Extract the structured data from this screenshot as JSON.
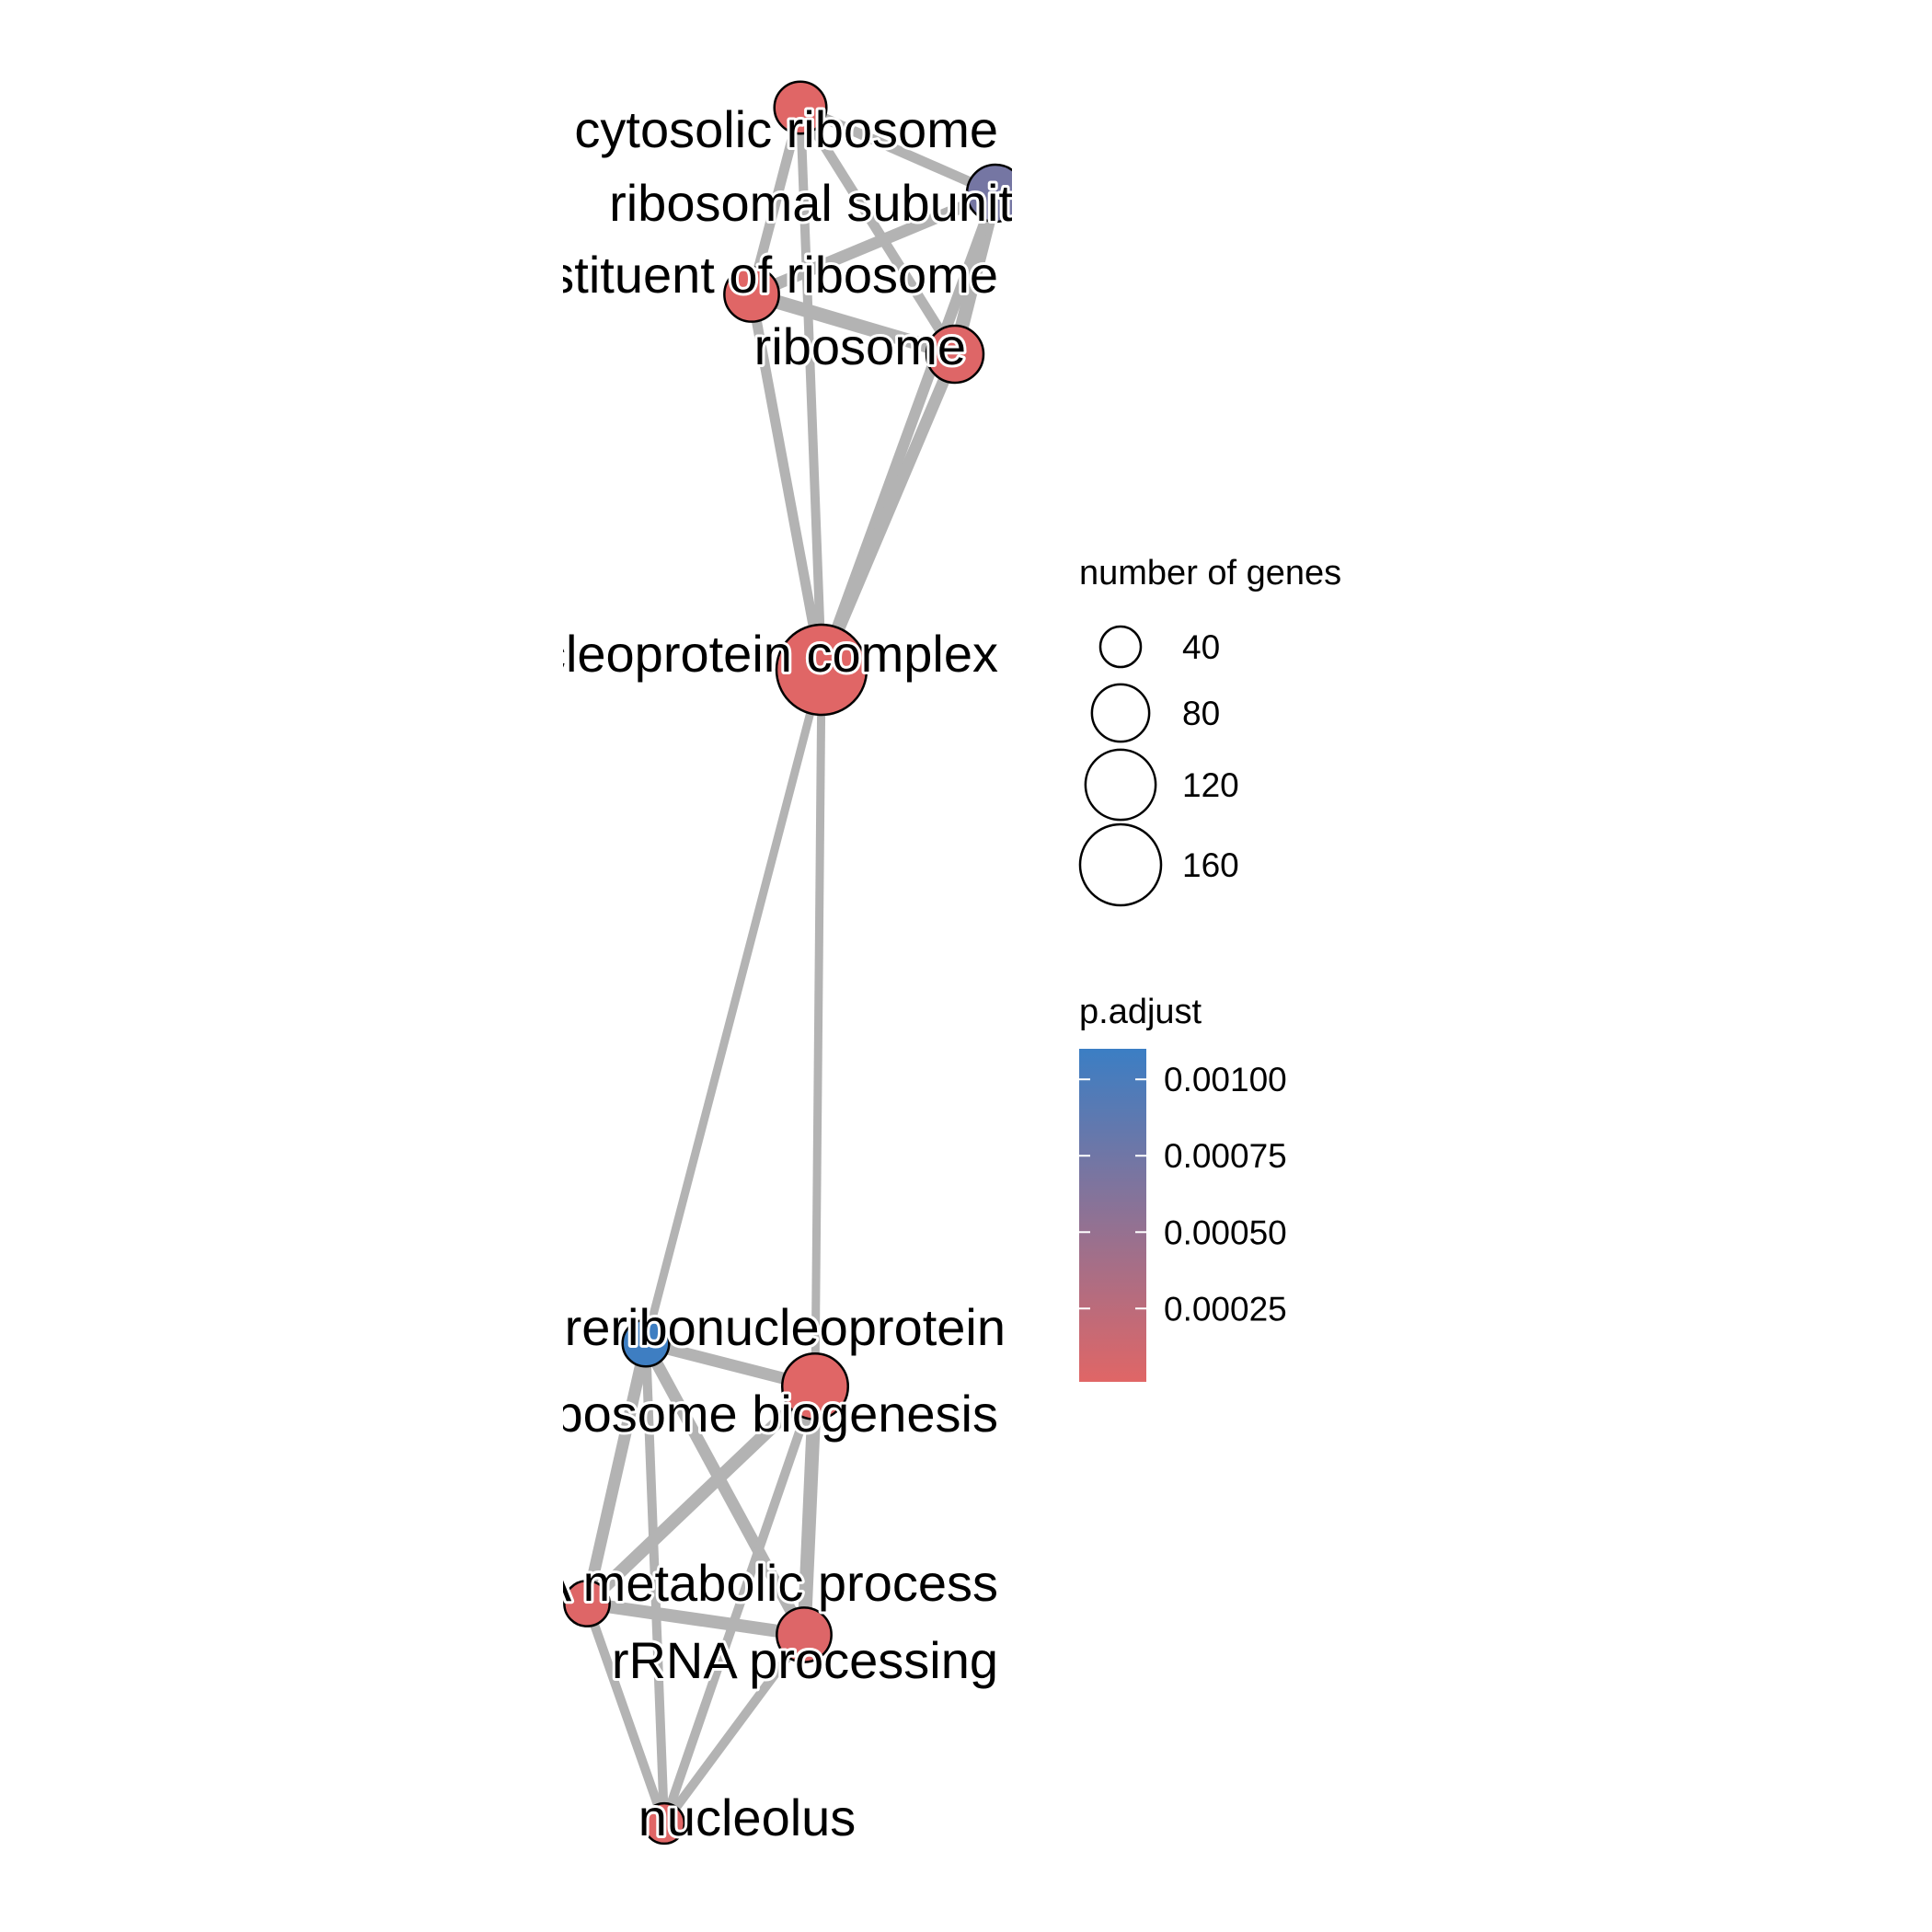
{
  "colors": {
    "edge": "#b3b3b3",
    "node_outline": "#000000",
    "low": "#e06666",
    "high": "#3b7ec4"
  },
  "nodes": [
    {
      "id": "cytosolic_ribosome",
      "label": "cytosolic ribosome",
      "genes": 50,
      "p_adjust": 1e-05
    },
    {
      "id": "ribosomal_subunit",
      "label": "ribosomal subunit",
      "genes": 60,
      "p_adjust": 0.00072
    },
    {
      "id": "structural_constituent",
      "label": "structural constituent of ribosome",
      "genes": 55,
      "p_adjust": 1e-05
    },
    {
      "id": "ribosome",
      "label": "ribosome",
      "genes": 60,
      "p_adjust": 2e-05
    },
    {
      "id": "ribonucleoprotein_complex",
      "label": "ribonucleoprotein complex",
      "genes": 150,
      "p_adjust": 1e-05
    },
    {
      "id": "preribosome",
      "label": "preribonucleoprotein",
      "genes": 40,
      "p_adjust": 0.00108
    },
    {
      "id": "ribosome_biogenesis",
      "label": "ribosome biogenesis",
      "genes": 80,
      "p_adjust": 1e-05
    },
    {
      "id": "rrna_metabolic",
      "label": "rRNA metabolic process",
      "genes": 38,
      "p_adjust": 2e-05
    },
    {
      "id": "rrna_processing",
      "label": "rRNA processing",
      "genes": 55,
      "p_adjust": 3e-05
    },
    {
      "id": "nucleolus",
      "label": "nucleolus",
      "genes": 30,
      "p_adjust": 1e-05
    }
  ],
  "edges": [
    {
      "source": "cytosolic_ribosome",
      "target": "ribosomal_subunit",
      "weight": 0.5
    },
    {
      "source": "cytosolic_ribosome",
      "target": "structural_constituent",
      "weight": 0.5
    },
    {
      "source": "cytosolic_ribosome",
      "target": "ribosome",
      "weight": 0.5
    },
    {
      "source": "cytosolic_ribosome",
      "target": "ribonucleoprotein_complex",
      "weight": 0.4
    },
    {
      "source": "ribosomal_subunit",
      "target": "structural_constituent",
      "weight": 0.7
    },
    {
      "source": "ribosomal_subunit",
      "target": "ribosome",
      "weight": 0.9
    },
    {
      "source": "ribosomal_subunit",
      "target": "ribonucleoprotein_complex",
      "weight": 0.6
    },
    {
      "source": "structural_constituent",
      "target": "ribosome",
      "weight": 0.9
    },
    {
      "source": "structural_constituent",
      "target": "ribonucleoprotein_complex",
      "weight": 0.5
    },
    {
      "source": "ribosome",
      "target": "ribonucleoprotein_complex",
      "weight": 0.7
    },
    {
      "source": "ribonucleoprotein_complex",
      "target": "preribosome",
      "weight": 0.3
    },
    {
      "source": "ribonucleoprotein_complex",
      "target": "ribosome_biogenesis",
      "weight": 0.3
    },
    {
      "source": "preribosome",
      "target": "ribosome_biogenesis",
      "weight": 0.7
    },
    {
      "source": "preribosome",
      "target": "rrna_metabolic",
      "weight": 0.7
    },
    {
      "source": "preribosome",
      "target": "rrna_processing",
      "weight": 0.7
    },
    {
      "source": "preribosome",
      "target": "nucleolus",
      "weight": 0.4
    },
    {
      "source": "ribosome_biogenesis",
      "target": "rrna_metabolic",
      "weight": 0.8
    },
    {
      "source": "ribosome_biogenesis",
      "target": "rrna_processing",
      "weight": 0.9
    },
    {
      "source": "ribosome_biogenesis",
      "target": "nucleolus",
      "weight": 0.4
    },
    {
      "source": "rrna_metabolic",
      "target": "rrna_processing",
      "weight": 0.8
    },
    {
      "source": "rrna_metabolic",
      "target": "nucleolus",
      "weight": 0.4
    },
    {
      "source": "rrna_processing",
      "target": "nucleolus",
      "weight": 0.4
    }
  ],
  "legend": {
    "size_title": "number of genes",
    "size_entries": [
      {
        "label": "40",
        "genes": 40
      },
      {
        "label": "80",
        "genes": 80
      },
      {
        "label": "120",
        "genes": 120
      },
      {
        "label": "160",
        "genes": 160
      }
    ],
    "color_title": "p.adjust",
    "color_ticks": [
      {
        "label": "0.00100",
        "value": 0.001
      },
      {
        "label": "0.00075",
        "value": 0.00075
      },
      {
        "label": "0.00050",
        "value": 0.0005
      },
      {
        "label": "0.00025",
        "value": 0.00025
      }
    ],
    "color_range": [
      1e-05,
      0.0011
    ]
  }
}
